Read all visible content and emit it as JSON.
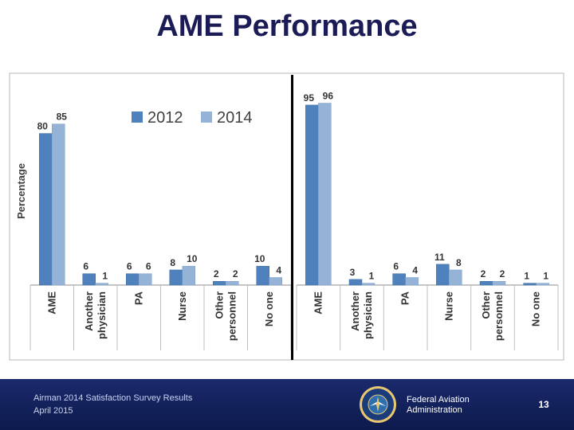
{
  "title": "AME Performance",
  "footer": {
    "survey": "Airman 2014 Satisfaction Survey Results",
    "date": "April 2015",
    "org_line1": "Federal Aviation",
    "org_line2": "Administration",
    "seal_text": "FEDERAL AVIATION ADMINISTRATION",
    "page": "13"
  },
  "colors": {
    "series_2012": "#4f81bd",
    "series_2014": "#95b3d7",
    "title": "#1b1b55",
    "footer_bg": "#0d1a4d"
  },
  "chart_data": {
    "type": "bar",
    "ylabel": "Percentage",
    "ylim": [
      0,
      100
    ],
    "legend_position": "top",
    "grid": false,
    "panels": [
      {
        "categories": [
          [
            "AME"
          ],
          [
            "Another",
            "physician"
          ],
          [
            "PA"
          ],
          [
            "Nurse"
          ],
          [
            "Other",
            "personnel"
          ],
          [
            "No one"
          ]
        ],
        "series": [
          {
            "name": "2012",
            "values": [
              80,
              6,
              6,
              8,
              2,
              10
            ]
          },
          {
            "name": "2014",
            "values": [
              85,
              1,
              6,
              10,
              2,
              4
            ]
          }
        ]
      },
      {
        "categories": [
          [
            "AME"
          ],
          [
            "Another",
            "physician"
          ],
          [
            "PA"
          ],
          [
            "Nurse"
          ],
          [
            "Other",
            "personnel"
          ],
          [
            "No one"
          ]
        ],
        "series": [
          {
            "name": "2012",
            "values": [
              95,
              3,
              6,
              11,
              2,
              1
            ]
          },
          {
            "name": "2014",
            "values": [
              96,
              1,
              4,
              8,
              2,
              1
            ]
          }
        ]
      }
    ]
  }
}
